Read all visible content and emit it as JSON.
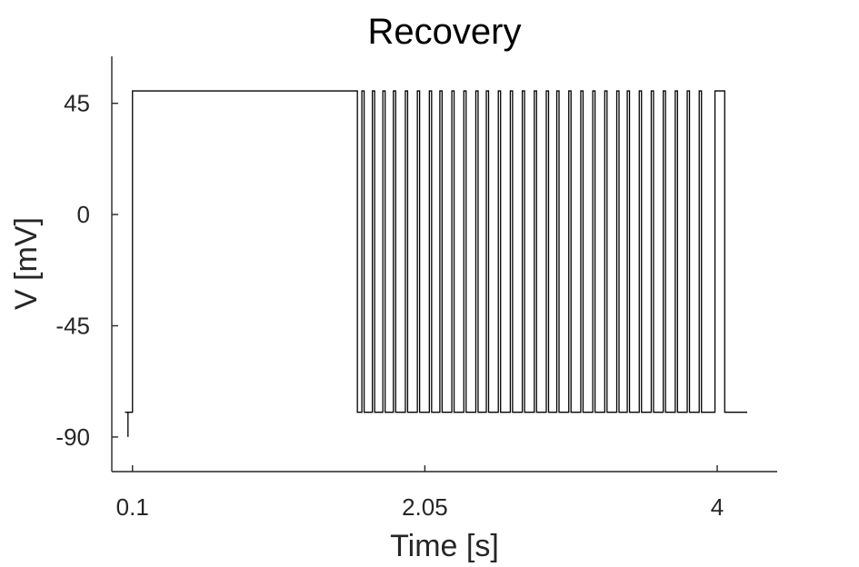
{
  "chart_data": {
    "type": "line",
    "title": "Recovery",
    "xlabel": "Time [s]",
    "ylabel": "V [mV]",
    "xlim": [
      -0.038,
      4.4
    ],
    "ylim": [
      -104,
      64
    ],
    "xticks": [
      0.1,
      2.05,
      4
    ],
    "xtick_labels": [
      "0.1",
      "2.05",
      "4"
    ],
    "yticks": [
      -90,
      -45,
      0,
      45
    ],
    "ytick_labels": [
      "-90",
      "-45",
      "0",
      "45"
    ],
    "grid": false,
    "legend": "none",
    "series": [
      {
        "color": "#000000",
        "segments": [
          {
            "x": [
              0.05,
              0.07,
              0.07,
              0.07,
              0.07,
              0.1,
              0.1,
              1.6,
              1.6,
              1.63,
              1.63,
              1.645,
              1.645,
              1.7,
              1.7,
              1.715,
              1.715,
              1.77,
              1.77,
              1.785,
              1.785,
              1.84,
              1.84,
              1.855,
              1.855,
              1.92,
              1.92,
              1.935,
              1.935,
              2.0,
              2.0,
              2.015,
              2.015,
              2.08,
              2.08,
              2.095,
              2.095,
              2.15,
              2.15,
              2.165,
              2.165,
              2.23,
              2.23,
              2.245,
              2.245,
              2.31,
              2.31,
              2.325,
              2.325,
              2.39,
              2.39,
              2.405,
              2.405,
              2.46,
              2.46,
              2.475,
              2.475,
              2.54,
              2.54,
              2.555,
              2.555,
              2.62,
              2.62,
              2.635,
              2.635,
              2.7,
              2.7,
              2.715,
              2.715,
              2.78,
              2.78,
              2.795,
              2.795,
              2.86,
              2.86,
              2.875,
              2.875,
              2.93,
              2.93,
              2.945,
              2.945,
              3.01,
              3.01,
              3.025,
              3.025,
              3.09,
              3.09,
              3.105,
              3.105,
              3.17,
              3.17,
              3.185,
              3.185,
              3.25,
              3.25,
              3.265,
              3.265,
              3.33,
              3.33,
              3.345,
              3.345,
              3.4,
              3.4,
              3.415,
              3.415,
              3.48,
              3.48,
              3.495,
              3.495,
              3.56,
              3.56,
              3.575,
              3.575,
              3.64,
              3.64,
              3.655,
              3.655,
              3.72,
              3.72,
              3.735,
              3.735,
              3.8,
              3.8,
              3.815,
              3.815,
              3.88,
              3.88,
              3.895,
              3.895,
              3.95,
              3.95,
              3.985,
              3.985,
              4.05,
              4.05,
              4.1,
              4.1,
              4.2
            ],
            "y": [
              -80,
              -80,
              -90,
              -80,
              -80,
              -80,
              50,
              50,
              -80,
              -80,
              50,
              50,
              -80,
              -80,
              50,
              50,
              -80,
              -80,
              50,
              50,
              -80,
              -80,
              50,
              50,
              -80,
              -80,
              50,
              50,
              -80,
              -80,
              50,
              50,
              -80,
              -80,
              50,
              50,
              -80,
              -80,
              50,
              50,
              -80,
              -80,
              50,
              50,
              -80,
              -80,
              50,
              50,
              -80,
              -80,
              50,
              50,
              -80,
              -80,
              50,
              50,
              -80,
              -80,
              50,
              50,
              -80,
              -80,
              50,
              50,
              -80,
              -80,
              50,
              50,
              -80,
              -80,
              50,
              50,
              -80,
              -80,
              50,
              50,
              -80,
              -80,
              50,
              50,
              -80,
              -80,
              50,
              50,
              -80,
              -80,
              50,
              50,
              -80,
              -80,
              50,
              50,
              -80,
              -80,
              50,
              50,
              -80,
              -80,
              50,
              50,
              -80,
              -80,
              50,
              50,
              -80,
              -80,
              50,
              50,
              -80,
              -80,
              50,
              50,
              -80,
              -80,
              50,
              50,
              -80,
              -80,
              50,
              50,
              -80,
              -80,
              50,
              50,
              -80,
              -80,
              50,
              50,
              -80,
              -80,
              -80,
              -80,
              50,
              50,
              -80,
              -80,
              -80,
              -80
            ]
          }
        ]
      }
    ]
  }
}
